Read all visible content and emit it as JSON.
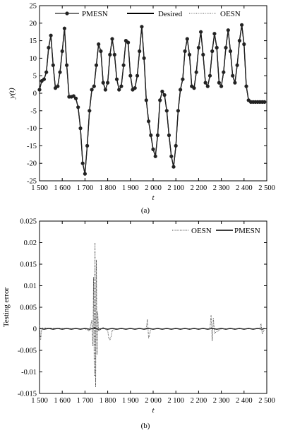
{
  "figure": {
    "panels": [
      {
        "caption": "(a)"
      },
      {
        "caption": "(b)"
      }
    ]
  },
  "chart_data": [
    {
      "type": "line",
      "xlabel": "t",
      "ylabel": "y(t)",
      "xlim": [
        1500,
        2500
      ],
      "ylim": [
        -25,
        25
      ],
      "xticks": [
        1500,
        1600,
        1700,
        1800,
        1900,
        2000,
        2100,
        2200,
        2300,
        2400,
        2500
      ],
      "xtick_labels": [
        "1 500",
        "1 600",
        "1 700",
        "1 800",
        "1 900",
        "2 000",
        "2 100",
        "2 200",
        "2 300",
        "2 400",
        "2 500"
      ],
      "yticks": [
        -25,
        -20,
        -15,
        -10,
        -5,
        0,
        5,
        10,
        15,
        20,
        25
      ],
      "ytick_labels": [
        "-25",
        "-20",
        "-15",
        "-10",
        "-5",
        "0",
        "5",
        "10",
        "15",
        "20",
        "25"
      ],
      "legend": {
        "position": "top",
        "entries": [
          "PMESN",
          "Desired",
          "OESN"
        ]
      },
      "series": [
        {
          "name": "PMESN",
          "style": "solid-with-markers",
          "color": "#222222"
        },
        {
          "name": "Desired",
          "style": "solid",
          "color": "#000000"
        },
        {
          "name": "OESN",
          "style": "dotted",
          "color": "#555555"
        }
      ],
      "x": [
        1500,
        1510,
        1520,
        1530,
        1540,
        1550,
        1560,
        1570,
        1580,
        1590,
        1600,
        1610,
        1620,
        1630,
        1640,
        1650,
        1660,
        1670,
        1680,
        1690,
        1700,
        1710,
        1720,
        1730,
        1740,
        1750,
        1760,
        1770,
        1780,
        1790,
        1800,
        1810,
        1820,
        1830,
        1840,
        1850,
        1860,
        1870,
        1880,
        1890,
        1900,
        1910,
        1920,
        1930,
        1940,
        1950,
        1960,
        1970,
        1980,
        1990,
        2000,
        2010,
        2020,
        2030,
        2040,
        2050,
        2060,
        2070,
        2080,
        2090,
        2100,
        2110,
        2120,
        2130,
        2140,
        2150,
        2160,
        2170,
        2180,
        2190,
        2200,
        2210,
        2220,
        2230,
        2240,
        2250,
        2260,
        2270,
        2280,
        2290,
        2300,
        2310,
        2320,
        2330,
        2340,
        2350,
        2360,
        2370,
        2380,
        2390,
        2400,
        2410,
        2420,
        2430,
        2440,
        2450,
        2460,
        2470,
        2480,
        2490
      ],
      "y": [
        1,
        3.5,
        4,
        6,
        13,
        16.5,
        8,
        1.5,
        2,
        6,
        12,
        18.5,
        8,
        -1,
        -1,
        -0.8,
        -1.5,
        -4,
        -10,
        -20,
        -23,
        -15,
        -5,
        1,
        2,
        8,
        14,
        12,
        3,
        1,
        3,
        11,
        15.5,
        11,
        4,
        1,
        2,
        8,
        15,
        14.5,
        5,
        1,
        1.5,
        5,
        12,
        19,
        10,
        -2,
        -8,
        -12,
        -16,
        -18,
        -12,
        -2,
        0.5,
        -0.5,
        -5,
        -12,
        -18,
        -21,
        -15,
        -5,
        1,
        4,
        12,
        15.5,
        11,
        2,
        1.5,
        6,
        13,
        17.5,
        11,
        3,
        2,
        5,
        12,
        17,
        13,
        3,
        2,
        6,
        13,
        18,
        12,
        5,
        3,
        8,
        15,
        19.5,
        14,
        2,
        -2,
        -2.5,
        -2.5,
        -2.5,
        -2.5,
        -2.5,
        -2.5,
        -2.5
      ]
    },
    {
      "type": "line",
      "xlabel": "t",
      "ylabel": "Testing error",
      "xlim": [
        1500,
        2500
      ],
      "ylim": [
        -0.015,
        0.025
      ],
      "xticks": [
        1500,
        1600,
        1700,
        1800,
        1900,
        2000,
        2100,
        2200,
        2300,
        2400,
        2500
      ],
      "xtick_labels": [
        "1 500",
        "1 600",
        "1 700",
        "1 800",
        "1 900",
        "2 000",
        "2 100",
        "2 200",
        "2 300",
        "2 400",
        "2 500"
      ],
      "yticks": [
        -0.015,
        -0.01,
        -0.005,
        0,
        0.005,
        0.01,
        0.015,
        0.02,
        0.025
      ],
      "ytick_labels": [
        "-0.015",
        "-0.01",
        "-0.005",
        "0",
        "0.005",
        "0.01",
        "0.015",
        "0.02",
        "0.025"
      ],
      "legend": {
        "position": "top-right",
        "entries": [
          "OESN",
          "PMESN"
        ]
      },
      "series": [
        {
          "name": "OESN",
          "style": "dotted",
          "color": "#444444",
          "x": [
            1500,
            1505,
            1510,
            1700,
            1720,
            1730,
            1735,
            1738,
            1741,
            1744,
            1747,
            1750,
            1753,
            1756,
            1760,
            1780,
            1800,
            1805,
            1810,
            1815,
            1820,
            1840,
            1960,
            1970,
            1975,
            1980,
            1990,
            2200,
            2250,
            2255,
            2260,
            2265,
            2270,
            2300,
            2470,
            2475,
            2480,
            2490
          ],
          "y": [
            0.0008,
            -0.0025,
            0.0002,
            0,
            -0.0005,
            0.002,
            -0.004,
            0.012,
            -0.011,
            0.02,
            -0.0135,
            0.016,
            -0.006,
            0.004,
            -0.0005,
            0.0003,
            -0.0004,
            -0.0022,
            -0.0025,
            -0.0018,
            -0.0004,
            0,
            0,
            0.0002,
            0.0022,
            -0.0022,
            0,
            0,
            0,
            0.0032,
            -0.0028,
            0.0025,
            -0.001,
            0,
            0,
            0.0012,
            -0.0012,
            0
          ]
        },
        {
          "name": "PMESN",
          "style": "solid",
          "color": "#222222",
          "x": [
            1500,
            1520,
            1540,
            1560,
            1580,
            1600,
            1620,
            1640,
            1660,
            1680,
            1700,
            1720,
            1740,
            1760,
            1780,
            1800,
            1820,
            1840,
            1860,
            1880,
            1900,
            1920,
            1940,
            1960,
            1980,
            2000,
            2020,
            2040,
            2060,
            2080,
            2100,
            2120,
            2140,
            2160,
            2180,
            2200,
            2220,
            2240,
            2260,
            2280,
            2300,
            2320,
            2340,
            2360,
            2380,
            2400,
            2420,
            2440,
            2460,
            2480,
            2490
          ],
          "y": [
            0.0001,
            -0.0001,
            0.0001,
            -0.0001,
            0.0001,
            -0.0001,
            0.0001,
            -0.0001,
            0.0001,
            -0.0001,
            0.0001,
            -0.0001,
            0.0002,
            -0.0001,
            0.0001,
            -0.0001,
            0.0001,
            -0.0001,
            0.0001,
            -0.0001,
            0.0001,
            -0.0001,
            0.0001,
            -0.0001,
            0.0001,
            -0.0001,
            0.0001,
            -0.0001,
            0.0001,
            -0.0001,
            0.0001,
            -0.0001,
            0.0001,
            -0.0001,
            0.0001,
            -0.0001,
            0.0001,
            -0.0001,
            0.0001,
            -0.0001,
            0.0001,
            -0.0001,
            0.0001,
            -0.0001,
            0.0001,
            -0.0001,
            0.0001,
            -0.0001,
            0.0001,
            -0.0001,
            0.0001
          ]
        }
      ]
    }
  ]
}
